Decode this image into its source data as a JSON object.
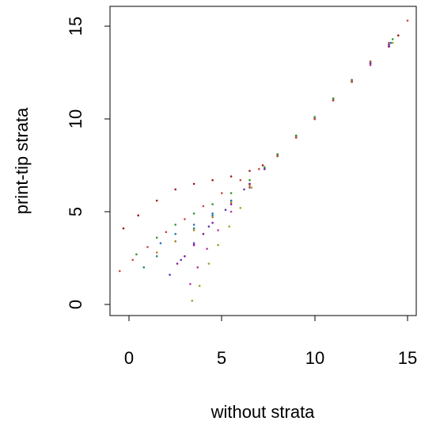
{
  "chart_data": {
    "type": "scatter",
    "title": "",
    "xlabel": "without strata",
    "ylabel": "print-tip strata",
    "xlim": [
      -1,
      15.6
    ],
    "ylim": [
      -0.7,
      16.1
    ],
    "x_ticks": [
      0,
      5,
      10,
      15
    ],
    "y_ticks": [
      0,
      5,
      10,
      15
    ],
    "x_tick_labels": [
      "0",
      "5",
      "10",
      "15"
    ],
    "y_tick_labels": [
      "0",
      "5",
      "10",
      "15"
    ],
    "grid": false,
    "legend": "none",
    "series": [
      {
        "color": "#a01818",
        "values_x": [
          -0.3,
          0.5,
          1.5,
          2.5,
          3.5,
          4.5,
          5.5,
          6.5,
          7.2,
          8,
          9,
          10,
          11,
          12,
          13,
          14,
          14.5
        ],
        "values_y": [
          4.1,
          4.8,
          5.6,
          6.2,
          6.5,
          6.7,
          6.9,
          7.2,
          7.5,
          8.1,
          9.1,
          10.1,
          11.1,
          12.1,
          13.0,
          13.9,
          14.5
        ]
      },
      {
        "color": "#2e9a2e",
        "values_x": [
          0.4,
          1.5,
          2.5,
          3.5,
          4.5,
          5.5,
          6.5,
          7.3,
          8,
          9,
          10,
          11,
          12,
          13,
          14.2
        ],
        "values_y": [
          2.7,
          3.6,
          4.3,
          4.9,
          5.4,
          6.0,
          6.7,
          7.4,
          8.1,
          9.1,
          10.1,
          11.1,
          12.1,
          13.1,
          14.3
        ]
      },
      {
        "color": "#1e8c8c",
        "values_x": [
          0.8,
          1.5,
          2.5,
          3.5,
          4.5,
          5.5,
          6.5,
          7.3,
          8,
          9,
          10,
          11,
          12,
          13,
          14
        ],
        "values_y": [
          2.0,
          2.6,
          3.4,
          4.1,
          4.8,
          5.6,
          6.5,
          7.3,
          8.0,
          9.0,
          10.0,
          11.0,
          12.0,
          13.0,
          14.0
        ]
      },
      {
        "color": "#2870c8",
        "values_x": [
          1.7,
          2.5,
          3.5,
          4.5,
          5.5,
          6.5,
          7.3,
          8,
          9,
          10,
          11,
          12,
          13,
          14.1
        ],
        "values_y": [
          3.3,
          3.8,
          4.3,
          4.9,
          5.6,
          6.5,
          7.3,
          8.0,
          9.0,
          10.0,
          11.0,
          12.0,
          13.0,
          14.1
        ]
      },
      {
        "color": "#8e1a8e",
        "values_x": [
          2.6,
          3.0,
          3.5,
          4.0,
          4.5,
          5.5,
          6.5,
          7.3,
          8,
          9,
          10,
          11,
          12,
          13,
          14
        ],
        "values_y": [
          2.2,
          2.6,
          3.2,
          3.8,
          4.4,
          5.4,
          6.5,
          7.3,
          8.0,
          9.0,
          10.0,
          11.0,
          12.0,
          13.0,
          13.9
        ]
      },
      {
        "color": "#b23c9a",
        "values_x": [
          3.3,
          3.7,
          4.2,
          4.8,
          5.5,
          6.5,
          7.3,
          8,
          9,
          10,
          11,
          12,
          13
        ],
        "values_y": [
          1.1,
          2.0,
          3.0,
          4.0,
          5.0,
          6.3,
          7.3,
          8.0,
          9.0,
          10.0,
          11.0,
          12.0,
          12.9
        ]
      },
      {
        "color": "#9aa628",
        "values_x": [
          3.4,
          3.8,
          4.3,
          4.8,
          5.4,
          6.0,
          6.6,
          7.3,
          8,
          9,
          10,
          11,
          12,
          13,
          14.2
        ],
        "values_y": [
          0.2,
          1.0,
          2.2,
          3.2,
          4.2,
          5.2,
          6.3,
          7.3,
          8.0,
          9.0,
          10.0,
          11.0,
          12.0,
          13.0,
          14.1
        ]
      },
      {
        "color": "#c08020",
        "values_x": [
          1.5,
          2.5,
          3.5,
          4.5,
          5.5,
          6.5,
          7.3,
          8,
          9,
          10,
          11,
          12,
          13,
          14
        ],
        "values_y": [
          2.8,
          3.4,
          4.0,
          4.7,
          5.5,
          6.4,
          7.3,
          8.0,
          9.0,
          10.0,
          11.0,
          12.0,
          13.0,
          14.0
        ]
      },
      {
        "color": "#5a3cb4",
        "values_x": [
          2.2,
          2.8,
          3.5,
          4.3,
          5.2,
          6.2,
          7.3,
          8,
          9,
          10,
          11,
          12,
          13,
          14
        ],
        "values_y": [
          1.6,
          2.4,
          3.3,
          4.2,
          5.1,
          6.2,
          7.3,
          8.0,
          9.0,
          10.0,
          11.0,
          12.0,
          13.0,
          14.0
        ]
      },
      {
        "color": "#c84848",
        "values_x": [
          -0.5,
          0.2,
          1.0,
          2.0,
          3.0,
          4.0,
          5.0,
          6.0,
          7.0,
          8,
          9,
          10,
          11,
          12,
          13,
          14,
          15.0
        ],
        "values_y": [
          1.8,
          2.4,
          3.1,
          3.9,
          4.6,
          5.3,
          6.0,
          6.7,
          7.3,
          8.0,
          9.0,
          10.0,
          11.0,
          12.0,
          13.1,
          14.1,
          15.3
        ]
      }
    ]
  }
}
